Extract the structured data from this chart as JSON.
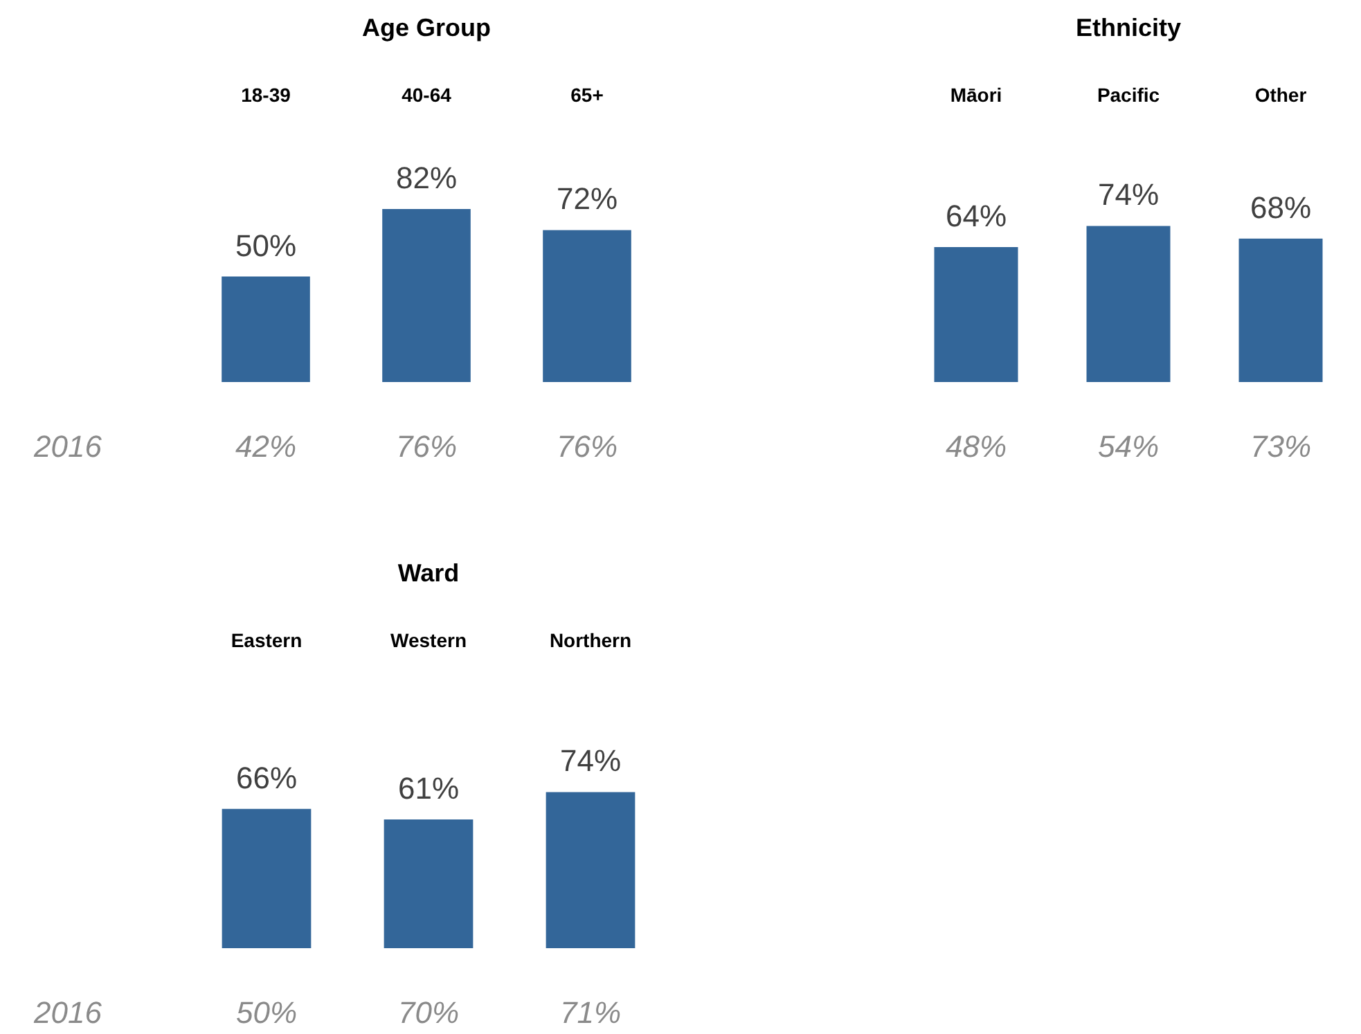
{
  "chart_data": [
    {
      "type": "bar",
      "title": "Age Group",
      "categories": [
        "18-39",
        "40-64",
        "65+"
      ],
      "values": [
        50,
        82,
        72
      ],
      "color": "#336699",
      "value_labels": [
        "50%",
        "82%",
        "72%"
      ],
      "annotations": [
        "2016",
        "42%",
        "76%",
        "76%"
      ]
    },
    {
      "type": "bar",
      "title": "Ethnicity",
      "categories": [
        "Māori",
        "Pacific",
        "Other"
      ],
      "values": [
        64,
        74,
        68
      ],
      "color": "#336699",
      "value_labels": [
        "64%",
        "74%",
        "68%"
      ],
      "annotations": [
        "48%",
        "54%",
        "73%"
      ]
    },
    {
      "type": "bar",
      "title": "Ward",
      "categories": [
        "Eastern",
        "Western",
        "Northern"
      ],
      "values": [
        66,
        61,
        74
      ],
      "color": "#336699",
      "value_labels": [
        "66%",
        "61%",
        "74%"
      ],
      "annotations": [
        "2016",
        "50%",
        "70%",
        "71%"
      ]
    }
  ]
}
